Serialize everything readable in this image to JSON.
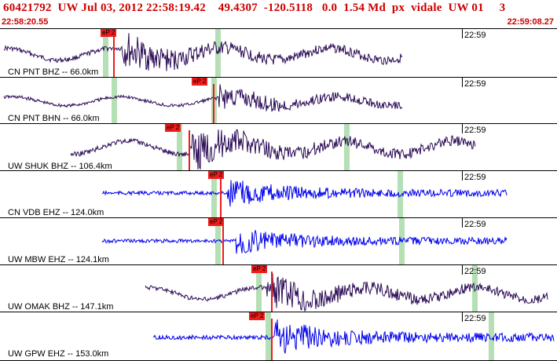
{
  "header": {
    "title": "60421792  UW Jul 03, 2012 22:58:19.42    49.4307  -120.5118   0.0  1.54 Md  px  vidale  UW 01     3",
    "start_time": "22:58:20.55",
    "end_time": "22:59:08.27"
  },
  "pick_label": "eP 2",
  "tick_label": "22:59",
  "colors": {
    "dark_trace": "#2a0a55",
    "blue_trace": "#0000ee",
    "pick_red": "#ee1c1c",
    "window_green": "#b5e0b5",
    "title_red": "#cc0000"
  },
  "channels": [
    {
      "label": "CN PNT BHZ -- 66.0km",
      "trace_color": "dark",
      "pick_pos": 0.1807,
      "green_pos": [
        0.1849,
        0.3865
      ],
      "redline_pos": 0.2034
    },
    {
      "label": "CN PNT BHN -- 66.0km",
      "trace_color": "dark",
      "pick_pos": 0.3442,
      "green_pos": [
        0.2005,
        0.3794
      ],
      "redline_pos": 0.3829
    },
    {
      "label": "UW SHUK BHZ -- 106.4km",
      "trace_color": "dark",
      "pick_pos": 0.2962,
      "green_pos": [
        0.3174,
        0.6178
      ],
      "redline_pos": 0.3385
    },
    {
      "label": "CN VDB EHZ -- 124.0km",
      "trace_color": "blue",
      "pick_pos": 0.3738,
      "green_pos": [
        0.3794,
        0.7137
      ],
      "redline_pos": 0.3949
    },
    {
      "label": "UW MBW EHZ -- 124.1km",
      "trace_color": "blue",
      "pick_pos": 0.3738,
      "green_pos": [
        0.3865,
        0.7165
      ],
      "redline_pos": 0.3991
    },
    {
      "label": "UW OMAK BHZ -- 147.1km",
      "trace_color": "dark",
      "pick_pos": 0.4513,
      "green_pos": [
        0.4598,
        0.8477
      ],
      "redline_pos": 0.4866
    },
    {
      "label": "UW GPW EHZ -- 153.0km",
      "trace_color": "blue",
      "pick_pos": 0.4471,
      "green_pos": [
        0.4767,
        0.8773
      ],
      "redline_pos": 0.4866
    }
  ]
}
